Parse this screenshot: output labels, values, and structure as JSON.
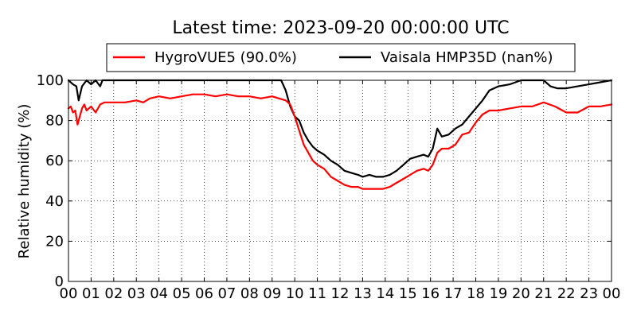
{
  "chart_data": {
    "type": "line",
    "title": "Latest time: 2023-09-20 00:00:00 UTC",
    "ylabel": "Relative humidity (%)",
    "xlabel": "",
    "xlim": [
      0,
      24
    ],
    "ylim": [
      0,
      100
    ],
    "grid": true,
    "legend_position": "top",
    "x_tick_labels": [
      "00",
      "01",
      "02",
      "03",
      "04",
      "05",
      "06",
      "07",
      "08",
      "09",
      "10",
      "11",
      "12",
      "13",
      "14",
      "15",
      "16",
      "17",
      "18",
      "19",
      "20",
      "21",
      "22",
      "23",
      "00"
    ],
    "y_ticks": [
      0,
      20,
      40,
      60,
      80,
      100
    ],
    "series": [
      {
        "name": "HygroVUE5 (90.0%)",
        "color": "#ff0000",
        "x": [
          0,
          0.1,
          0.2,
          0.3,
          0.4,
          0.5,
          0.6,
          0.7,
          0.8,
          1.0,
          1.2,
          1.4,
          1.6,
          1.8,
          2.0,
          2.5,
          3.0,
          3.3,
          3.6,
          4.0,
          4.5,
          5.0,
          5.5,
          6.0,
          6.5,
          7.0,
          7.5,
          8.0,
          8.5,
          9.0,
          9.3,
          9.6,
          9.8,
          10.0,
          10.2,
          10.4,
          10.6,
          10.8,
          11.0,
          11.3,
          11.6,
          11.9,
          12.2,
          12.5,
          12.8,
          13.0,
          13.3,
          13.6,
          13.9,
          14.2,
          14.5,
          14.8,
          15.1,
          15.4,
          15.7,
          15.9,
          16.1,
          16.3,
          16.5,
          16.8,
          17.1,
          17.4,
          17.7,
          18.0,
          18.3,
          18.6,
          19.0,
          19.5,
          20.0,
          20.5,
          21.0,
          21.5,
          22.0,
          22.5,
          23.0,
          23.5,
          24.0
        ],
        "values": [
          86,
          87,
          84,
          85,
          78,
          82,
          86,
          88,
          85,
          87,
          84,
          88,
          89,
          89,
          89,
          89,
          90,
          89,
          91,
          92,
          91,
          92,
          93,
          93,
          92,
          93,
          92,
          92,
          91,
          92,
          91,
          90,
          88,
          82,
          75,
          68,
          64,
          60,
          58,
          56,
          52,
          50,
          48,
          47,
          47,
          46,
          46,
          46,
          46,
          47,
          49,
          51,
          53,
          55,
          56,
          55,
          58,
          64,
          66,
          66,
          68,
          73,
          74,
          79,
          83,
          85,
          85,
          86,
          87,
          87,
          89,
          87,
          84,
          84,
          87,
          87,
          88
        ]
      },
      {
        "name": "Vaisala HMP35D (nan%)",
        "color": "#000000",
        "x": [
          0,
          0.2,
          0.35,
          0.45,
          0.6,
          0.8,
          1.0,
          1.2,
          1.4,
          1.5,
          9.4,
          9.6,
          9.8,
          10.0,
          10.2,
          10.4,
          10.6,
          10.8,
          11.0,
          11.3,
          11.6,
          11.9,
          12.2,
          12.5,
          12.8,
          13.0,
          13.3,
          13.6,
          13.9,
          14.2,
          14.5,
          14.8,
          15.1,
          15.4,
          15.7,
          15.9,
          16.1,
          16.3,
          16.5,
          16.8,
          17.1,
          17.4,
          17.7,
          18.0,
          18.3,
          18.6,
          19.0,
          19.5,
          20.0,
          20.5,
          21.0,
          21.3,
          21.6,
          22.0,
          22.5,
          23.0,
          23.5,
          24.0
        ],
        "values": [
          100,
          98,
          97,
          90,
          97,
          100,
          98,
          100,
          97,
          100,
          100,
          95,
          87,
          82,
          80,
          74,
          70,
          67,
          65,
          63,
          60,
          58,
          55,
          54,
          53,
          52,
          53,
          52,
          52,
          53,
          55,
          58,
          61,
          62,
          63,
          62,
          66,
          76,
          72,
          73,
          76,
          78,
          82,
          86,
          90,
          95,
          97,
          98,
          100,
          100,
          100,
          97,
          96,
          96,
          97,
          98,
          99,
          100
        ]
      }
    ]
  }
}
